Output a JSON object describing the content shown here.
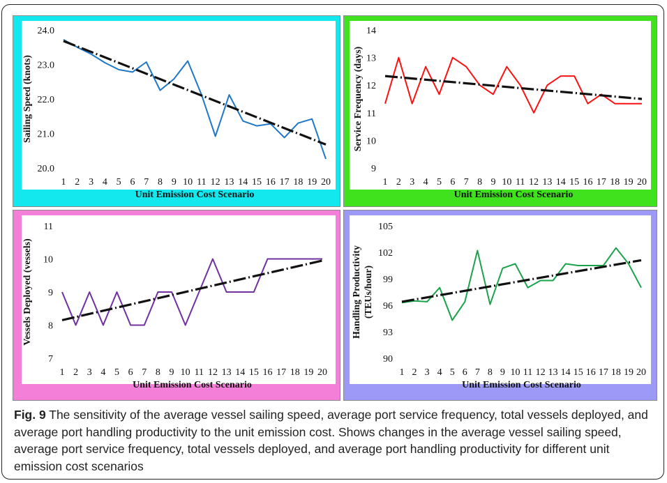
{
  "caption": {
    "label": "Fig. 9",
    "text": " The sensitivity of the average vessel sailing speed, average port service frequency, total vessels deployed, and average port handling productivity to the unit emission cost. Shows changes in the average vessel sailing speed, average port service frequency, total vessels deployed, and average port handling productivity for different unit emission cost scenarios"
  },
  "chart_data": [
    {
      "type": "line",
      "panel_color": "#13e8ef",
      "xlabel": "Unit Emission Cost Scenario",
      "ylabel": [
        "Sailing Speed (knots)"
      ],
      "x": [
        1,
        2,
        3,
        4,
        5,
        6,
        7,
        8,
        9,
        10,
        11,
        12,
        13,
        14,
        15,
        16,
        17,
        18,
        19,
        20
      ],
      "ylim": [
        20.0,
        24.0
      ],
      "yticks": [
        "20.0",
        "21.0",
        "22.0",
        "23.0",
        "24.0"
      ],
      "series": [
        {
          "color": "#1f77c8",
          "values": [
            23.72,
            23.5,
            23.3,
            23.05,
            22.85,
            22.78,
            23.07,
            22.25,
            22.58,
            23.1,
            22.12,
            20.92,
            22.12,
            21.36,
            21.22,
            21.28,
            20.88,
            21.3,
            21.42,
            20.26
          ]
        }
      ],
      "trendline": {
        "style": "dashed-black",
        "values": [
          23.68,
          20.68
        ]
      }
    },
    {
      "type": "line",
      "panel_color": "#3fe21c",
      "xlabel": "Unit Emission Cost Scenario",
      "ylabel": [
        "Service Frequency (days)"
      ],
      "x": [
        1,
        2,
        3,
        4,
        5,
        6,
        7,
        8,
        9,
        10,
        11,
        12,
        13,
        14,
        15,
        16,
        17,
        18,
        19,
        20
      ],
      "ylim": [
        9,
        14
      ],
      "yticks": [
        "9",
        "10",
        "11",
        "12",
        "13",
        "14"
      ],
      "series": [
        {
          "color": "#ff1010",
          "values": [
            11.33,
            13.0,
            11.33,
            12.67,
            11.67,
            13.0,
            12.67,
            12.0,
            11.67,
            12.67,
            12.0,
            11.0,
            12.0,
            12.33,
            12.33,
            11.33,
            11.67,
            11.33,
            11.33,
            11.33
          ]
        }
      ],
      "trendline": {
        "style": "dashed-black",
        "values": [
          12.33,
          11.5
        ]
      }
    },
    {
      "type": "line",
      "panel_color": "#f47fd8",
      "xlabel": "Unit Emission Cost Scenario",
      "ylabel": [
        "Vessels Deployed (vessels)"
      ],
      "x": [
        1,
        2,
        3,
        4,
        5,
        6,
        7,
        8,
        9,
        10,
        11,
        12,
        13,
        14,
        15,
        16,
        17,
        18,
        19,
        20
      ],
      "ylim": [
        7,
        11
      ],
      "yticks": [
        "7",
        "8",
        "9",
        "10",
        "11"
      ],
      "series": [
        {
          "color": "#7030a0",
          "values": [
            9,
            8,
            9,
            8,
            9,
            8,
            8,
            9,
            9,
            8,
            9,
            10,
            9,
            9,
            9,
            10,
            10,
            10,
            10,
            10
          ]
        }
      ],
      "trendline": {
        "style": "dashed-black",
        "values": [
          8.15,
          9.95
        ]
      }
    },
    {
      "type": "line",
      "panel_color": "#9c9af6",
      "xlabel": "Unit Emission Cost Scenario",
      "ylabel": [
        "Handling Productivity",
        "(TEUs/hour)"
      ],
      "x": [
        1,
        2,
        3,
        4,
        5,
        6,
        7,
        8,
        9,
        10,
        11,
        12,
        13,
        14,
        15,
        16,
        17,
        18,
        19,
        20
      ],
      "ylim": [
        90,
        105
      ],
      "yticks": [
        "90",
        "93",
        "96",
        "99",
        "102",
        "105"
      ],
      "series": [
        {
          "color": "#1aa34a",
          "values": [
            96.3,
            96.5,
            96.4,
            98.0,
            94.3,
            96.4,
            102.2,
            96.1,
            100.2,
            100.7,
            98.0,
            98.8,
            98.8,
            100.7,
            100.5,
            100.5,
            100.5,
            102.5,
            100.7,
            98.0
          ]
        }
      ],
      "trendline": {
        "style": "dashed-black",
        "values": [
          96.4,
          101.1
        ]
      }
    }
  ]
}
